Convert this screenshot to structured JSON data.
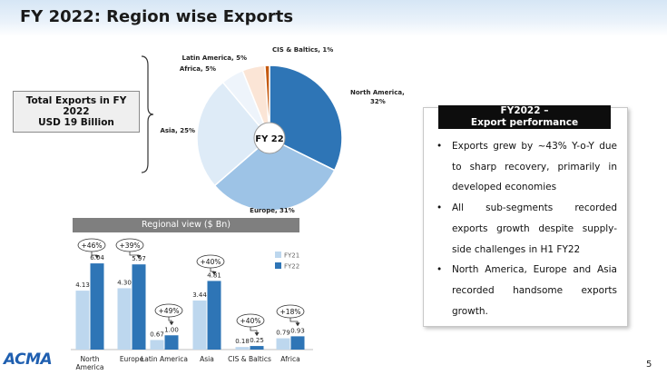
{
  "header": {
    "title": "FY 2022: Region wise Exports"
  },
  "total_box": {
    "line1": "Total Exports in FY 2022",
    "line2": "USD 19 Billion"
  },
  "performance": {
    "heading_line1": "FY2022 –",
    "heading_line2": "Export performance",
    "bullets": [
      "Exports grew by ~43% Y-o-Y due to sharp recovery, primarily in developed economies",
      "All sub-segments recorded exports growth despite supply-side challenges in H1 FY22",
      "North America, Europe and Asia recorded handsome exports growth."
    ]
  },
  "chart_data": [
    {
      "type": "pie",
      "center_label": "FY 22",
      "categories": [
        "North America",
        "Europe",
        "Asia",
        "Africa",
        "Latin America",
        "CIS & Baltics"
      ],
      "values": [
        32,
        31,
        25,
        5,
        5,
        1
      ],
      "value_labels": [
        "North America, 32%",
        "Europe, 31%",
        "Asia, 25%",
        "Africa, 5%",
        "Latin America, 5%",
        "CIS & Baltics, 1%"
      ],
      "colors": [
        "#2e75b6",
        "#9dc3e6",
        "#deebf7",
        "#eef4fb",
        "#fbe5d6",
        "#c55a11"
      ]
    },
    {
      "type": "bar",
      "title": "Regional view ($ Bn)",
      "categories": [
        "North America",
        "Europe",
        "Latin America",
        "Asia",
        "CIS & Baltics",
        "Africa"
      ],
      "series": [
        {
          "name": "FY21",
          "color": "#bdd7ee",
          "values": [
            4.13,
            4.3,
            0.67,
            3.44,
            0.18,
            0.79
          ],
          "value_labels": [
            "4.13",
            "4.30",
            "0.67",
            "3.44",
            "0.18",
            "0.79"
          ]
        },
        {
          "name": "FY22",
          "color": "#2e75b6",
          "values": [
            6.04,
            5.97,
            1.0,
            4.81,
            0.25,
            0.93
          ],
          "value_labels": [
            "6.04",
            "5.97",
            "1.00",
            "4.81",
            "0.25",
            "0.93"
          ]
        }
      ],
      "annotations": [
        "+46%",
        "+39%",
        "+49%",
        "+40%",
        "+40%",
        "+18%"
      ],
      "ylim": [
        0,
        7
      ],
      "legend": "right"
    }
  ],
  "footer": {
    "logo": "ACMA",
    "page_number": "5"
  }
}
